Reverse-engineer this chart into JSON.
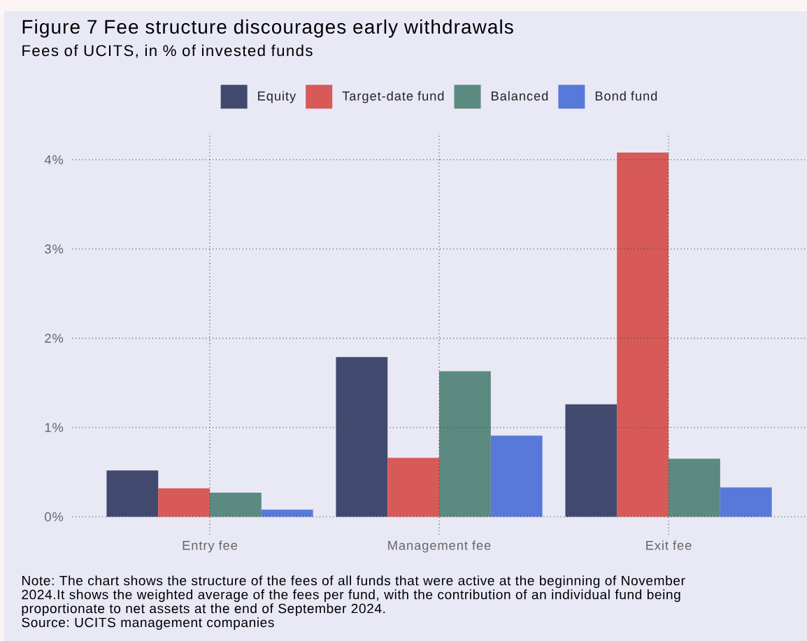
{
  "chart_data": {
    "type": "bar",
    "title": "Figure 7 Fee structure discourages early withdrawals",
    "subtitle": "Fees of UCITS, in % of invested funds",
    "categories": [
      "Entry fee",
      "Management fee",
      "Exit fee"
    ],
    "series": [
      {
        "name": "Equity",
        "color": "#414a6e",
        "values": [
          0.52,
          1.79,
          1.26
        ]
      },
      {
        "name": "Target-date fund",
        "color": "#d75a58",
        "values": [
          0.32,
          0.66,
          4.08
        ]
      },
      {
        "name": "Balanced",
        "color": "#5a8a80",
        "values": [
          0.27,
          1.63,
          0.65
        ]
      },
      {
        "name": "Bond fund",
        "color": "#5879d9",
        "values": [
          0.08,
          0.91,
          0.33
        ]
      }
    ],
    "ylim": [
      -0.2,
      4.3
    ],
    "yticks": [
      {
        "value": 0,
        "label": "0%"
      },
      {
        "value": 1,
        "label": "1%"
      },
      {
        "value": 2,
        "label": "2%"
      },
      {
        "value": 3,
        "label": "3%"
      },
      {
        "value": 4,
        "label": "4%"
      }
    ],
    "grid": true,
    "legend": "top",
    "annotations": [
      "Note: The chart shows the structure of the fees of all funds that were active at the beginning of November 2024.It shows the weighted average of the fees per fund, with the contribution of an individual fund being proportionate to net assets at the end of September 2024.",
      "Source: UCITS management companies"
    ]
  }
}
